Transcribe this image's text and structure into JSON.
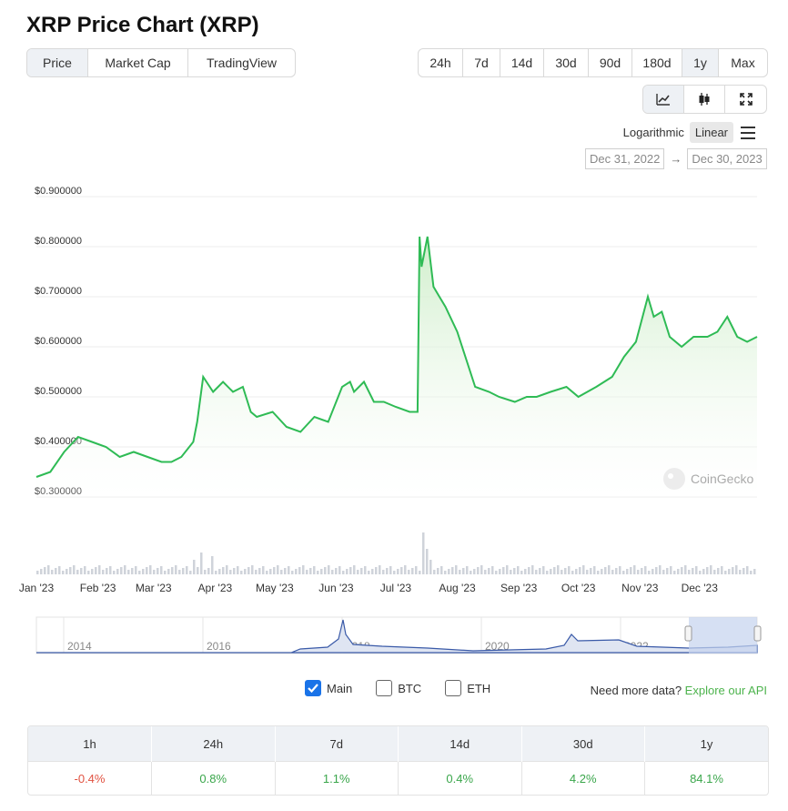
{
  "page": {
    "title": "XRP Price Chart (XRP)"
  },
  "tabs": [
    {
      "label": "Price",
      "active": true
    },
    {
      "label": "Market Cap",
      "active": false
    },
    {
      "label": "TradingView",
      "active": false
    }
  ],
  "ranges": [
    {
      "label": "24h",
      "active": false
    },
    {
      "label": "7d",
      "active": false
    },
    {
      "label": "14d",
      "active": false
    },
    {
      "label": "30d",
      "active": false
    },
    {
      "label": "90d",
      "active": false
    },
    {
      "label": "180d",
      "active": false
    },
    {
      "label": "1y",
      "active": true
    },
    {
      "label": "Max",
      "active": false
    }
  ],
  "chart_tools": [
    "line-chart-icon",
    "candlestick-icon",
    "fullscreen-icon"
  ],
  "scale": {
    "log_label": "Logarithmic",
    "linear_label": "Linear",
    "active": "Linear"
  },
  "date_range": {
    "from": "Dec 31, 2022",
    "arrow": "→",
    "to": "Dec 30, 2023"
  },
  "watermark": "CoinGecko",
  "chart_data": {
    "type": "area",
    "series": [
      {
        "x": [
          "2023-01-01",
          "2023-01-08",
          "2023-01-15",
          "2023-01-22",
          "2023-01-29",
          "2023-02-05",
          "2023-02-12",
          "2023-02-19",
          "2023-02-26",
          "2023-03-05",
          "2023-03-10",
          "2023-03-15",
          "2023-03-21",
          "2023-03-23",
          "2023-03-26",
          "2023-03-31",
          "2023-04-05",
          "2023-04-10",
          "2023-04-15",
          "2023-04-19",
          "2023-04-22",
          "2023-04-30",
          "2023-05-07",
          "2023-05-14",
          "2023-05-21",
          "2023-05-28",
          "2023-06-04",
          "2023-06-08",
          "2023-06-10",
          "2023-06-15",
          "2023-06-20",
          "2023-06-25",
          "2023-07-01",
          "2023-07-08",
          "2023-07-12",
          "2023-07-13",
          "2023-07-14",
          "2023-07-17",
          "2023-07-20",
          "2023-07-23",
          "2023-07-26",
          "2023-08-01",
          "2023-08-10",
          "2023-08-17",
          "2023-08-22",
          "2023-08-30",
          "2023-09-05",
          "2023-09-10",
          "2023-09-17",
          "2023-09-25",
          "2023-10-01",
          "2023-10-10",
          "2023-10-18",
          "2023-10-24",
          "2023-10-30",
          "2023-11-05",
          "2023-11-08",
          "2023-11-12",
          "2023-11-16",
          "2023-11-22",
          "2023-11-28",
          "2023-12-05",
          "2023-12-10",
          "2023-12-15",
          "2023-12-20",
          "2023-12-25",
          "2023-12-30"
        ],
        "y": [
          0.34,
          0.35,
          0.39,
          0.42,
          0.41,
          0.4,
          0.38,
          0.39,
          0.38,
          0.37,
          0.37,
          0.38,
          0.41,
          0.45,
          0.54,
          0.51,
          0.53,
          0.51,
          0.52,
          0.47,
          0.46,
          0.47,
          0.44,
          0.43,
          0.46,
          0.45,
          0.52,
          0.53,
          0.51,
          0.53,
          0.49,
          0.49,
          0.48,
          0.47,
          0.47,
          0.82,
          0.76,
          0.82,
          0.72,
          0.7,
          0.68,
          0.63,
          0.52,
          0.51,
          0.5,
          0.49,
          0.5,
          0.5,
          0.51,
          0.52,
          0.5,
          0.52,
          0.54,
          0.58,
          0.61,
          0.7,
          0.66,
          0.67,
          0.62,
          0.6,
          0.62,
          0.62,
          0.63,
          0.66,
          0.62,
          0.61,
          0.62
        ]
      }
    ],
    "y_ticks": [
      "$0.900000",
      "$0.800000",
      "$0.700000",
      "$0.600000",
      "$0.500000",
      "$0.400000",
      "$0.300000"
    ],
    "ylim": [
      0.3,
      0.9
    ],
    "x_ticks": [
      "Jan '23",
      "Feb '23",
      "Mar '23",
      "Apr '23",
      "May '23",
      "Jun '23",
      "Jul '23",
      "Aug '23",
      "Sep '23",
      "Oct '23",
      "Nov '23",
      "Dec '23"
    ],
    "navigator_ticks": [
      "2014",
      "2016",
      "2018",
      "2020",
      "2022"
    ],
    "grid": true,
    "line_color": "#2fbb55",
    "fill_color": "#d9f2d6"
  },
  "compare": [
    {
      "label": "Main",
      "checked": true
    },
    {
      "label": "BTC",
      "checked": false
    },
    {
      "label": "ETH",
      "checked": false
    }
  ],
  "more_data": {
    "text": "Need more data?",
    "link": "Explore our API"
  },
  "stats": {
    "headers": [
      "1h",
      "24h",
      "7d",
      "14d",
      "30d",
      "1y"
    ],
    "values": [
      "-0.4%",
      "0.8%",
      "1.1%",
      "0.4%",
      "4.2%",
      "84.1%"
    ]
  }
}
